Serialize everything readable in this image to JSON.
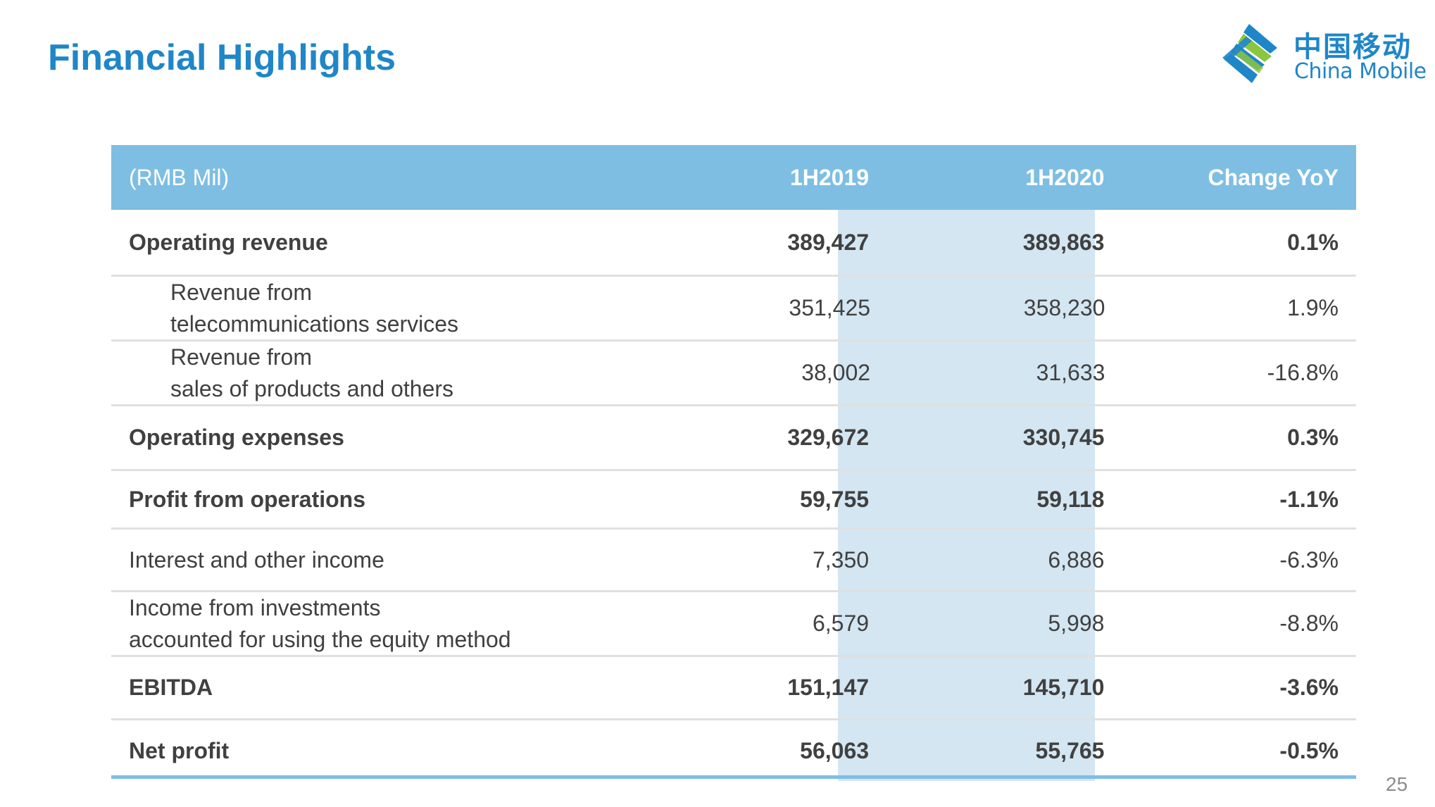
{
  "slide": {
    "title": "Financial Highlights",
    "page_number": "25"
  },
  "logo": {
    "name_cn": "中国移动",
    "name_en": "China Mobile",
    "colors": {
      "blue": "#1f86c8",
      "green": "#8cc63f"
    }
  },
  "colors": {
    "title": "#1f86c8",
    "header_bg": "#7ebee3",
    "highlight_column_bg": "#d3e6f2",
    "row_divider": "#e0e0e0",
    "text": "#404040"
  },
  "table": {
    "columns": [
      "(RMB Mil)",
      "1H2019",
      "1H2020",
      "Change YoY"
    ],
    "rows": [
      {
        "label": "Operating revenue",
        "h2019": "389,427",
        "h2020": "389,863",
        "change": "0.1%"
      },
      {
        "label": "Revenue from",
        "label2": "telecommunications services",
        "h2019": "351,425",
        "h2020": "358,230",
        "change": "1.9%"
      },
      {
        "label": "Revenue from",
        "label2": "sales of products and others",
        "h2019": "38,002",
        "h2020": "31,633",
        "change": "-16.8%"
      },
      {
        "label": "Operating expenses",
        "h2019": "329,672",
        "h2020": "330,745",
        "change": "0.3%"
      },
      {
        "label": "Profit from operations",
        "h2019": "59,755",
        "h2020": "59,118",
        "change": "-1.1%"
      },
      {
        "label": "Interest and other income",
        "h2019": "7,350",
        "h2020": "6,886",
        "change": "-6.3%"
      },
      {
        "label": "Income from investments",
        "label2": "accounted for using the equity method",
        "h2019": "6,579",
        "h2020": "5,998",
        "change": "-8.8%"
      },
      {
        "label": "EBITDA",
        "h2019": "151,147",
        "h2020": "145,710",
        "change": "-3.6%"
      },
      {
        "label": "Net profit",
        "h2019": "56,063",
        "h2020": "55,765",
        "change": "-0.5%"
      }
    ]
  }
}
